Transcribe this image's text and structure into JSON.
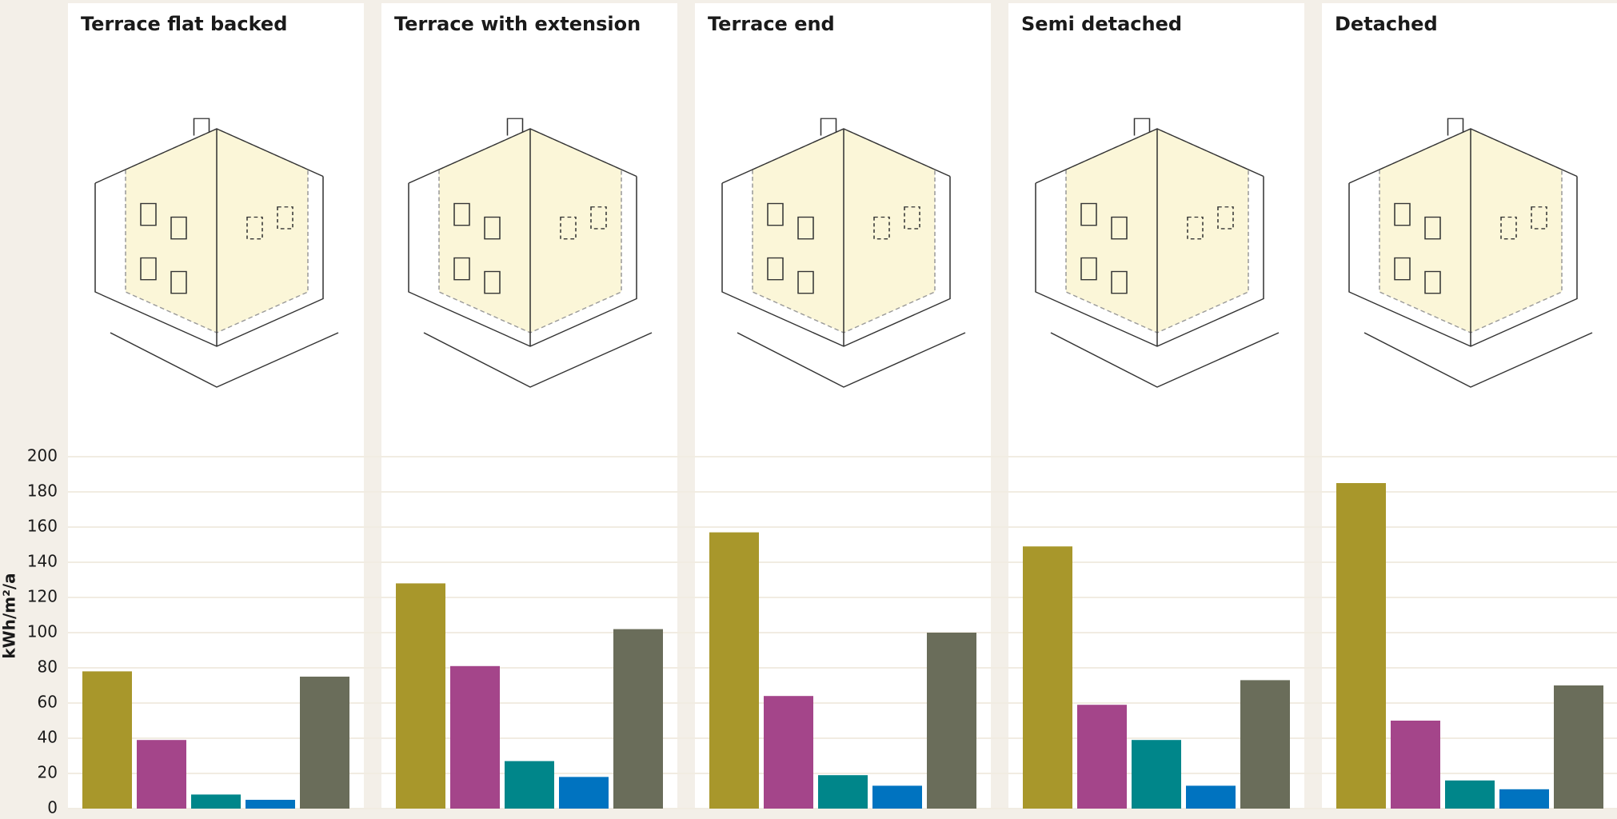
{
  "chart_data": {
    "type": "bar",
    "ylabel": "kWh/m²/a",
    "ylim": [
      0,
      200
    ],
    "yticks": [
      0,
      20,
      40,
      60,
      80,
      100,
      120,
      140,
      160,
      180,
      200
    ],
    "grid": true,
    "colors": [
      "#a8972b",
      "#a4458a",
      "#00868a",
      "#0073c0",
      "#6a6d5a"
    ],
    "panels": [
      {
        "title": "Terrace flat backed",
        "values": [
          78,
          39,
          8,
          5,
          75
        ]
      },
      {
        "title": "Terrace with extension",
        "values": [
          128,
          81,
          27,
          18,
          102
        ]
      },
      {
        "title": "Terrace end",
        "values": [
          157,
          64,
          19,
          13,
          100
        ]
      },
      {
        "title": "Semi detached",
        "values": [
          149,
          59,
          39,
          13,
          73
        ]
      },
      {
        "title": "Detached",
        "values": [
          185,
          50,
          16,
          11,
          70
        ]
      }
    ]
  }
}
